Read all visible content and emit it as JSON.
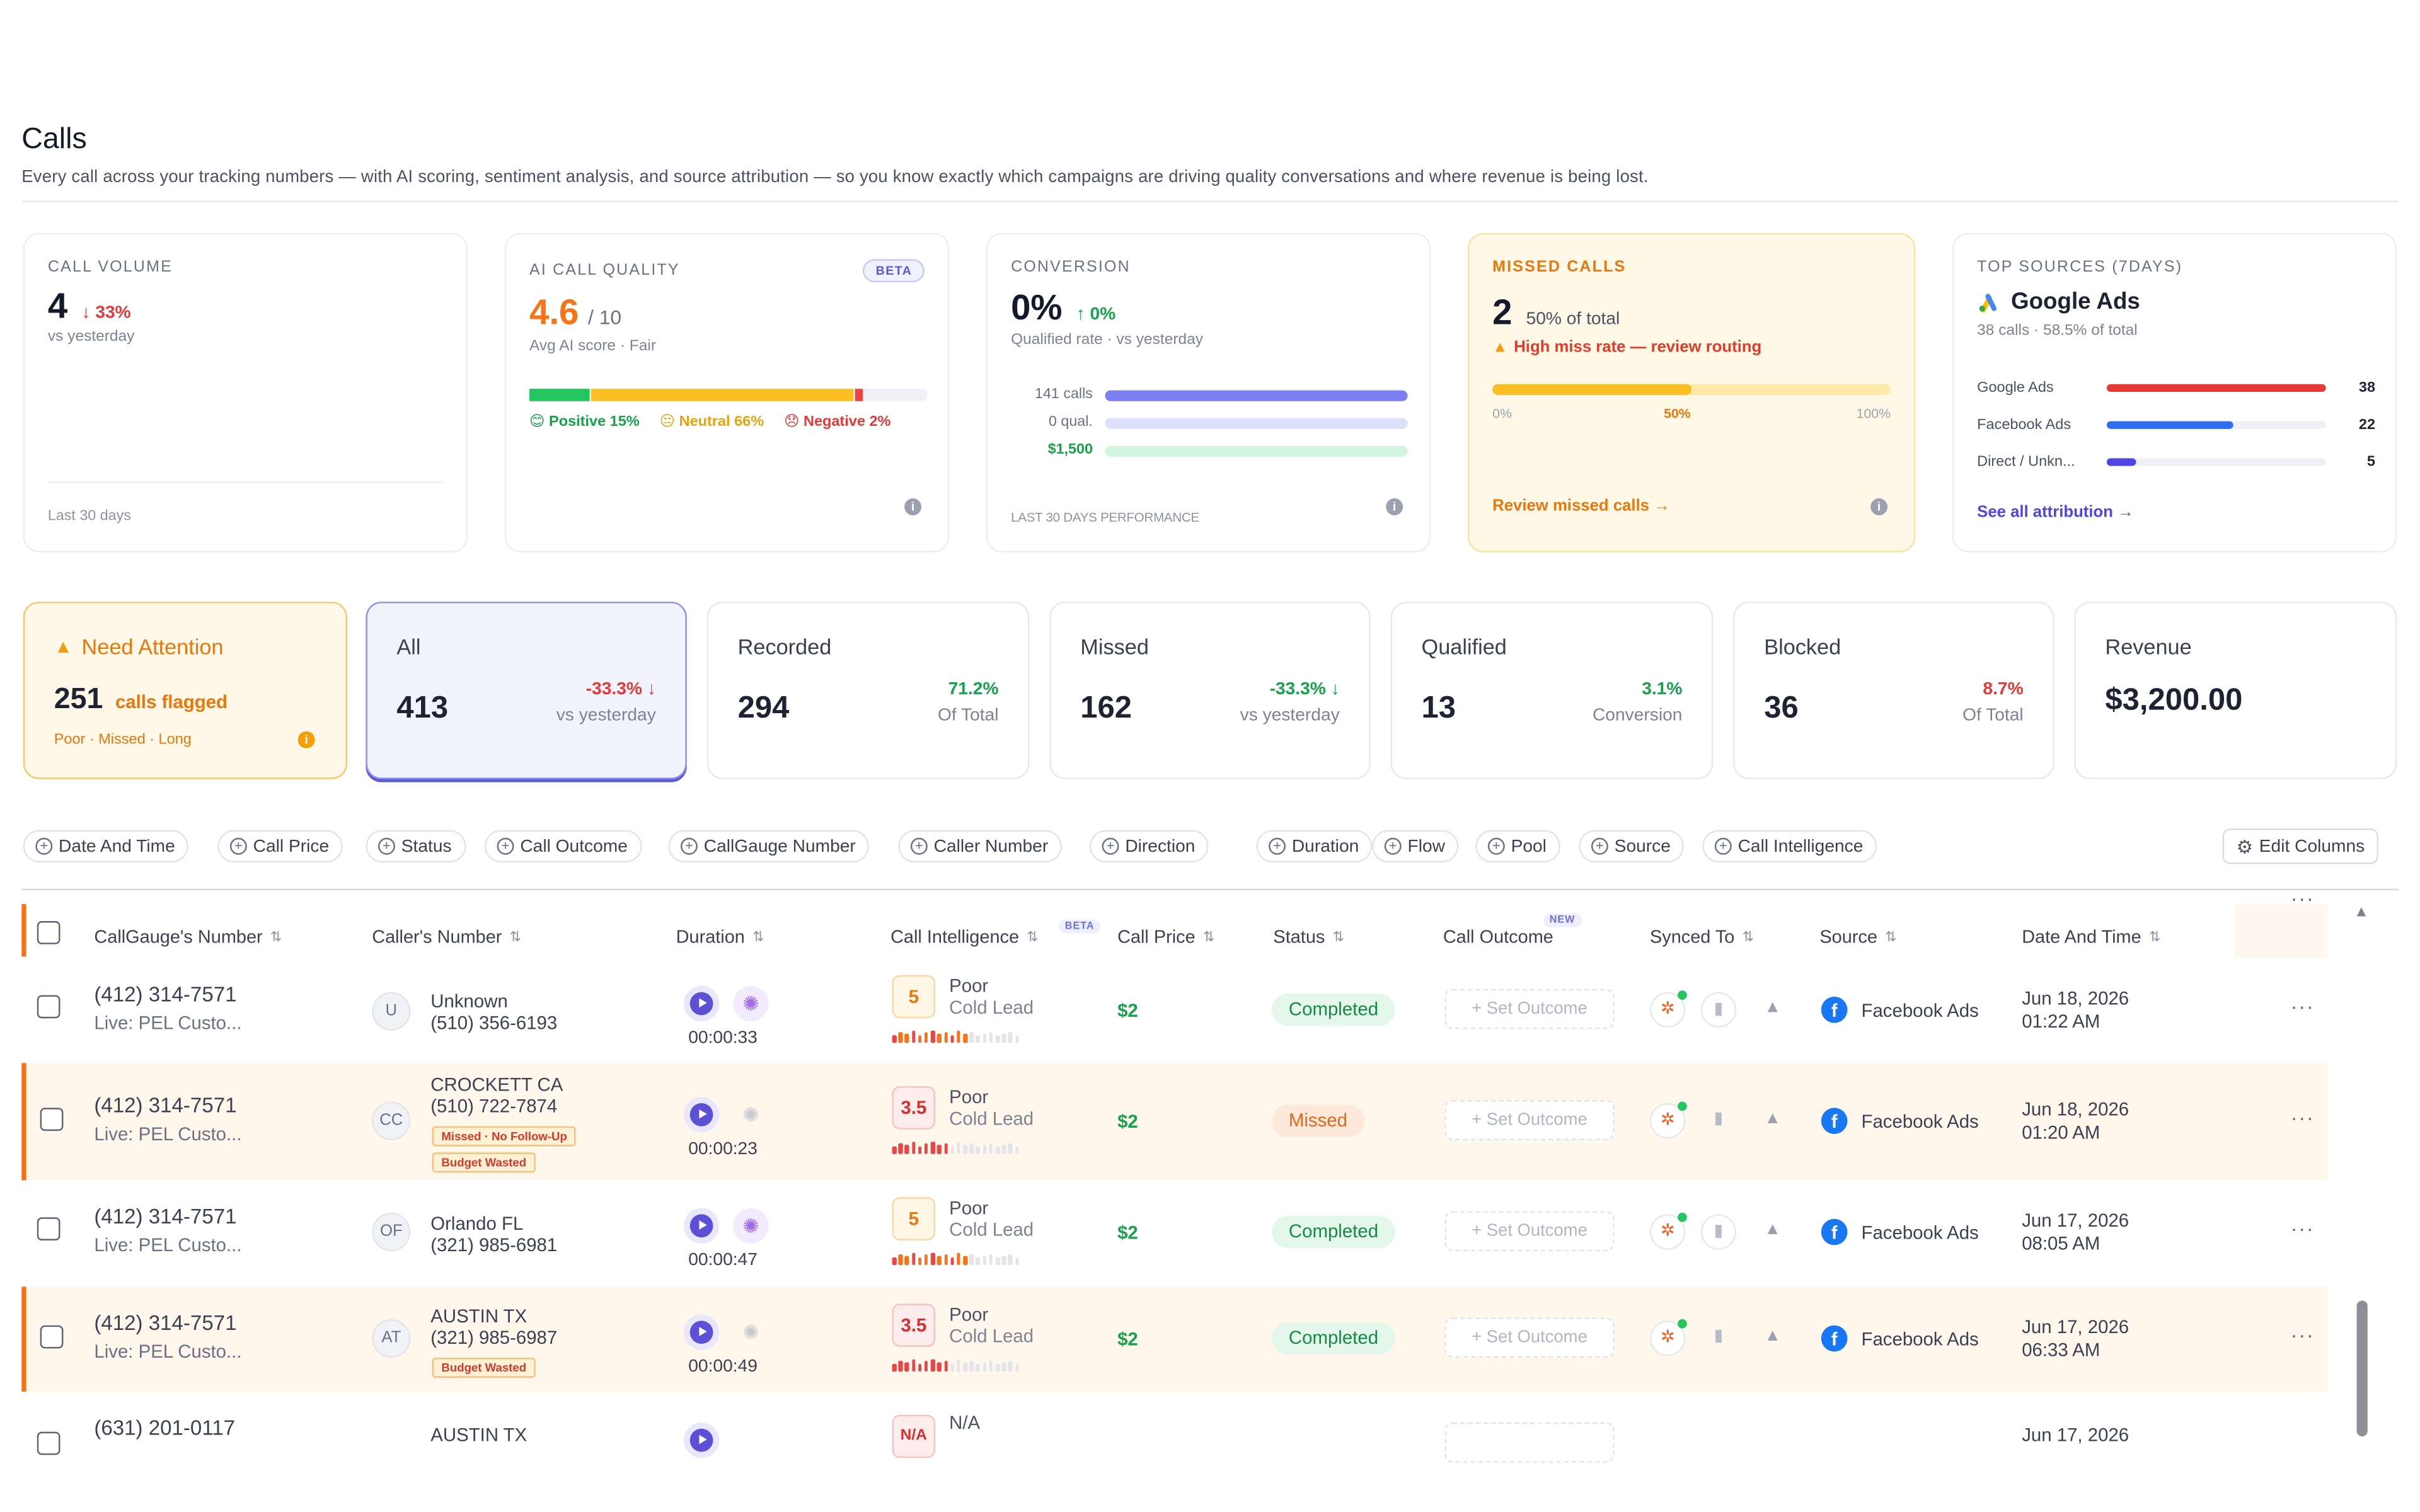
{
  "page": {
    "title": "Calls",
    "subtitle": "Every call across your tracking numbers — with AI scoring, sentiment analysis, and source attribution — so you know exactly which campaigns are driving quality conversations and where revenue is being lost."
  },
  "kpis": {
    "volume": {
      "label": "CALL VOLUME",
      "value": "4",
      "delta": "↓ 33%",
      "caption": "vs yesterday",
      "foot": "Last 30 days"
    },
    "quality": {
      "label": "AI CALL QUALITY",
      "badge": "BETA",
      "value": "4.6",
      "unit": "/ 10",
      "caption": "Avg AI score · Fair",
      "sentiment": {
        "positive": 15,
        "neutral": 66,
        "negative": 2
      },
      "legend": {
        "positive": "Positive 15%",
        "neutral": "Neutral 66%",
        "negative": "Negative 2%"
      }
    },
    "conversion": {
      "label": "CONVERSION",
      "value": "0%",
      "delta": "↑ 0%",
      "caption": "Qualified rate · vs yesterday",
      "rows": [
        {
          "label": "141 calls",
          "fill": 1.0
        },
        {
          "label": "0 qual.",
          "fill": 1.0
        },
        {
          "label": "$1,500",
          "fill": 1.0
        }
      ],
      "foot": "LAST 30 DAYS PERFORMANCE"
    },
    "missed": {
      "label": "MISSED CALLS",
      "value": "2",
      "share": "50% of total",
      "warning": "High miss rate — review routing",
      "progress": 0.5,
      "scale": [
        "0%",
        "50%",
        "100%"
      ],
      "link": "Review missed calls →"
    },
    "sources": {
      "label": "TOP SOURCES (7DAYS)",
      "top": "Google Ads",
      "caption": "38 calls · 58.5% of total",
      "items": [
        {
          "name": "Google Ads",
          "count": "38",
          "fill": 1.0,
          "color": "#e53935"
        },
        {
          "name": "Facebook Ads",
          "count": "22",
          "fill": 0.579,
          "color": "#2f6ef2"
        },
        {
          "name": "Direct / Unkn...",
          "count": "5",
          "fill": 0.132,
          "color": "#4f46e5"
        }
      ],
      "link": "See all attribution →"
    }
  },
  "stats": {
    "attention": {
      "title": "Need Attention",
      "value": "251",
      "unit": "calls flagged",
      "tags": "Poor · Missed · Long"
    },
    "all": {
      "name": "All",
      "value": "413",
      "delta": "-33.3% ↓",
      "caption": "vs yesterday"
    },
    "recorded": {
      "name": "Recorded",
      "value": "294",
      "delta": "71.2%",
      "caption": "Of Total"
    },
    "missed": {
      "name": "Missed",
      "value": "162",
      "delta": "-33.3% ↓",
      "caption": "vs yesterday"
    },
    "qualified": {
      "name": "Qualified",
      "value": "13",
      "delta": "3.1%",
      "caption": "Conversion"
    },
    "blocked": {
      "name": "Blocked",
      "value": "36",
      "delta": "8.7%",
      "caption": "Of Total"
    },
    "revenue": {
      "name": "Revenue",
      "value": "$3,200.00"
    }
  },
  "filters": [
    "Date And Time",
    "Call Price",
    "Status",
    "Call Outcome",
    "CallGauge Number",
    "Caller Number",
    "Direction",
    "Duration",
    "Flow",
    "Pool",
    "Source",
    "Call Intelligence"
  ],
  "edit_columns": "Edit Columns",
  "columns": {
    "number": "CallGauge's Number",
    "caller": "Caller's Number",
    "duration": "Duration",
    "intel": "Call Intelligence",
    "intel_badge": "BETA",
    "price": "Call Price",
    "status": "Status",
    "outcome": "Call Outcome",
    "outcome_badge": "NEW",
    "synced": "Synced To",
    "source": "Source",
    "date": "Date And Time"
  },
  "rows": [
    {
      "number": "(412) 314-7571",
      "line": "Live: PEL Custo...",
      "initials": "U",
      "caller_name": "Unknown",
      "caller_number": "(510) 356-6193",
      "tags": [],
      "duration": "00:00:33",
      "score": "5",
      "grade": "Poor",
      "lead": "Cold Lead",
      "price": "$2",
      "status": "Completed",
      "outcome": "+ Set Outcome",
      "source": "Facebook Ads",
      "date": "Jun 18, 2026",
      "time": "01:22 AM"
    },
    {
      "number": "(412) 314-7571",
      "line": "Live: PEL Custo...",
      "initials": "CC",
      "caller_name": "CROCKETT CA",
      "caller_number": "(510) 722-7874",
      "tags": [
        "Missed · No Follow-Up",
        "Budget Wasted"
      ],
      "duration": "00:00:23",
      "score": "3.5",
      "grade": "Poor",
      "lead": "Cold Lead",
      "price": "$2",
      "status": "Missed",
      "outcome": "+ Set Outcome",
      "source": "Facebook Ads",
      "date": "Jun 18, 2026",
      "time": "01:20 AM"
    },
    {
      "number": "(412) 314-7571",
      "line": "Live: PEL Custo...",
      "initials": "OF",
      "caller_name": "Orlando FL",
      "caller_number": "(321) 985-6981",
      "tags": [],
      "duration": "00:00:47",
      "score": "5",
      "grade": "Poor",
      "lead": "Cold Lead",
      "price": "$2",
      "status": "Completed",
      "outcome": "+ Set Outcome",
      "source": "Facebook Ads",
      "date": "Jun 17, 2026",
      "time": "08:05 AM"
    },
    {
      "number": "(412) 314-7571",
      "line": "Live: PEL Custo...",
      "initials": "AT",
      "caller_name": "AUSTIN TX",
      "caller_number": "(321) 985-6987",
      "tags": [
        "Budget Wasted"
      ],
      "duration": "00:00:49",
      "score": "3.5",
      "grade": "Poor",
      "lead": "Cold Lead",
      "price": "$2",
      "status": "Completed",
      "outcome": "+ Set Outcome",
      "source": "Facebook Ads",
      "date": "Jun 17, 2026",
      "time": "06:33 AM"
    },
    {
      "number": "(631) 201-0117",
      "initials": "",
      "caller_name": "AUSTIN TX",
      "score": "N/A",
      "grade": "N/A",
      "date": "Jun 17, 2026"
    }
  ]
}
